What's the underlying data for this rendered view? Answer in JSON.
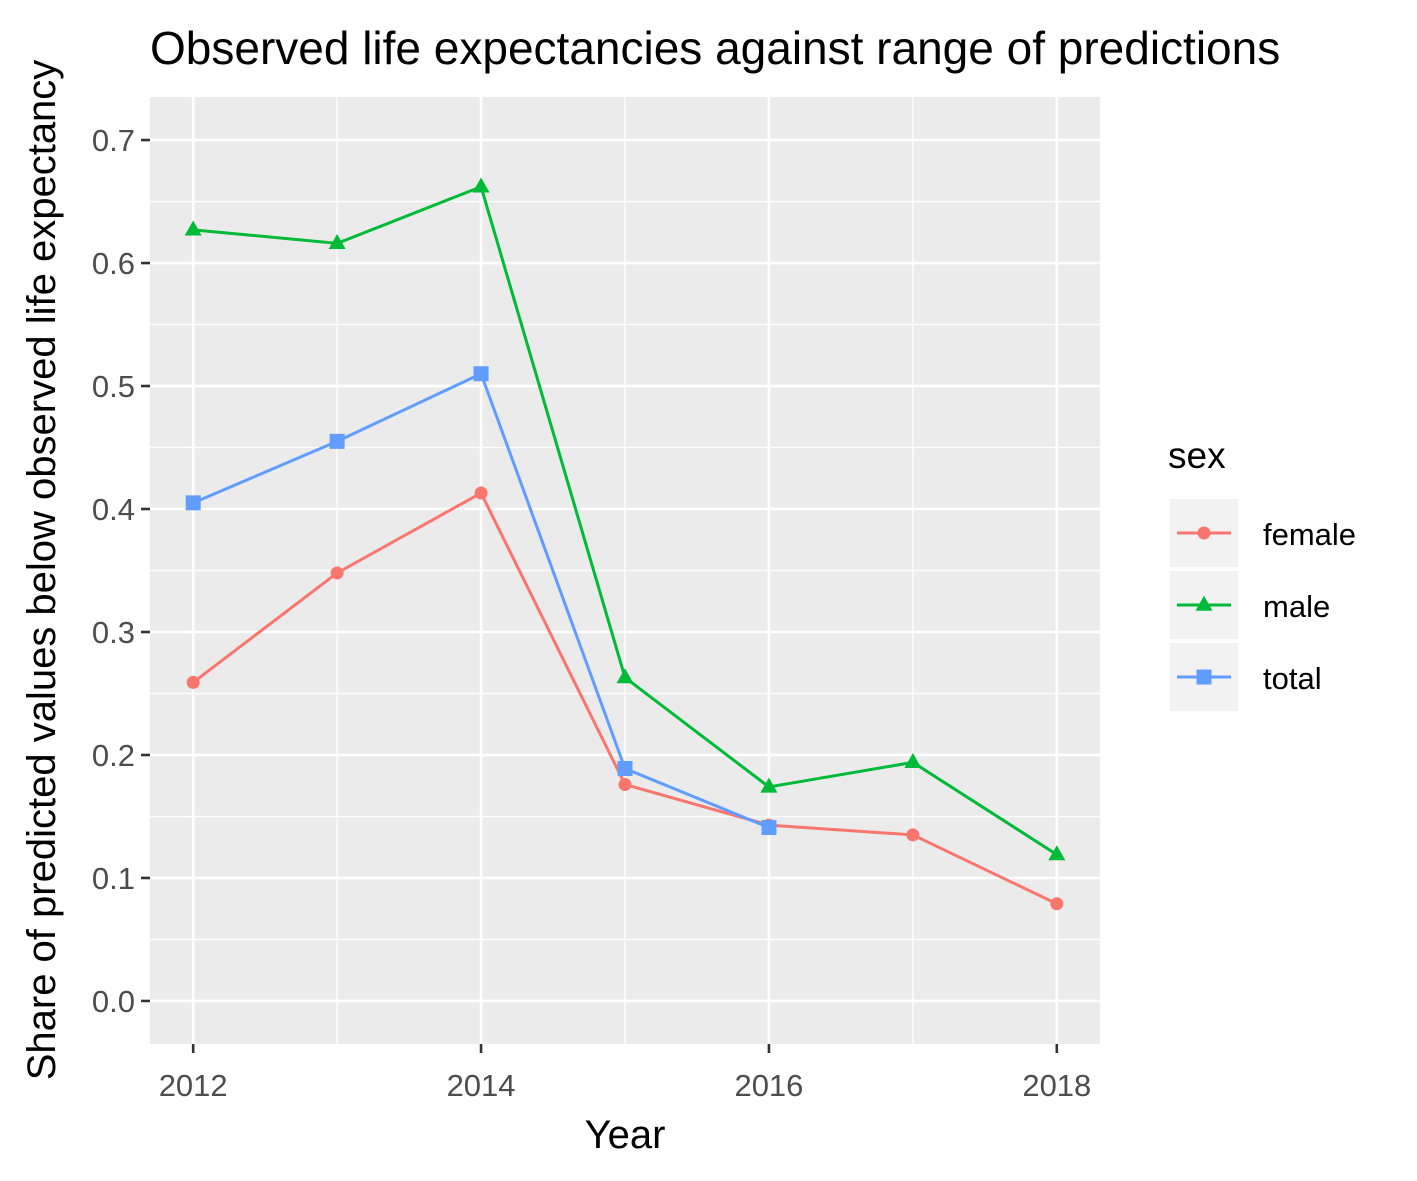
{
  "chart_data": {
    "type": "line",
    "title": "Observed life expectancies against range of predictions",
    "xlabel": "Year",
    "ylabel": "Share of predicted values below observed life expectancy",
    "xlim": [
      2011.7,
      2018.3
    ],
    "ylim": [
      -0.035,
      0.735
    ],
    "x_ticks": [
      2012,
      2014,
      2016,
      2018
    ],
    "x_tick_labels": [
      "2012",
      "2014",
      "2016",
      "2018"
    ],
    "y_ticks": [
      0.0,
      0.1,
      0.2,
      0.3,
      0.4,
      0.5,
      0.6,
      0.7
    ],
    "y_tick_labels": [
      "0.0",
      "0.1",
      "0.2",
      "0.3",
      "0.4",
      "0.5",
      "0.6",
      "0.7"
    ],
    "grid": true,
    "legend": {
      "title": "sex",
      "position": "right"
    },
    "series": [
      {
        "name": "female",
        "color": "#F8766D",
        "marker": "circle",
        "x": [
          2012,
          2013,
          2014,
          2015,
          2016,
          2017,
          2018
        ],
        "values": [
          0.259,
          0.348,
          0.413,
          0.176,
          0.143,
          0.135,
          0.079
        ]
      },
      {
        "name": "male",
        "color": "#00BA38",
        "marker": "triangle",
        "x": [
          2012,
          2013,
          2014,
          2015,
          2016,
          2017,
          2018
        ],
        "values": [
          0.627,
          0.616,
          0.662,
          0.263,
          0.174,
          0.194,
          0.119
        ]
      },
      {
        "name": "total",
        "color": "#619CFF",
        "marker": "square",
        "x": [
          2012,
          2013,
          2014,
          2015,
          2016
        ],
        "values": [
          0.405,
          0.455,
          0.51,
          0.189,
          0.141
        ]
      }
    ]
  }
}
